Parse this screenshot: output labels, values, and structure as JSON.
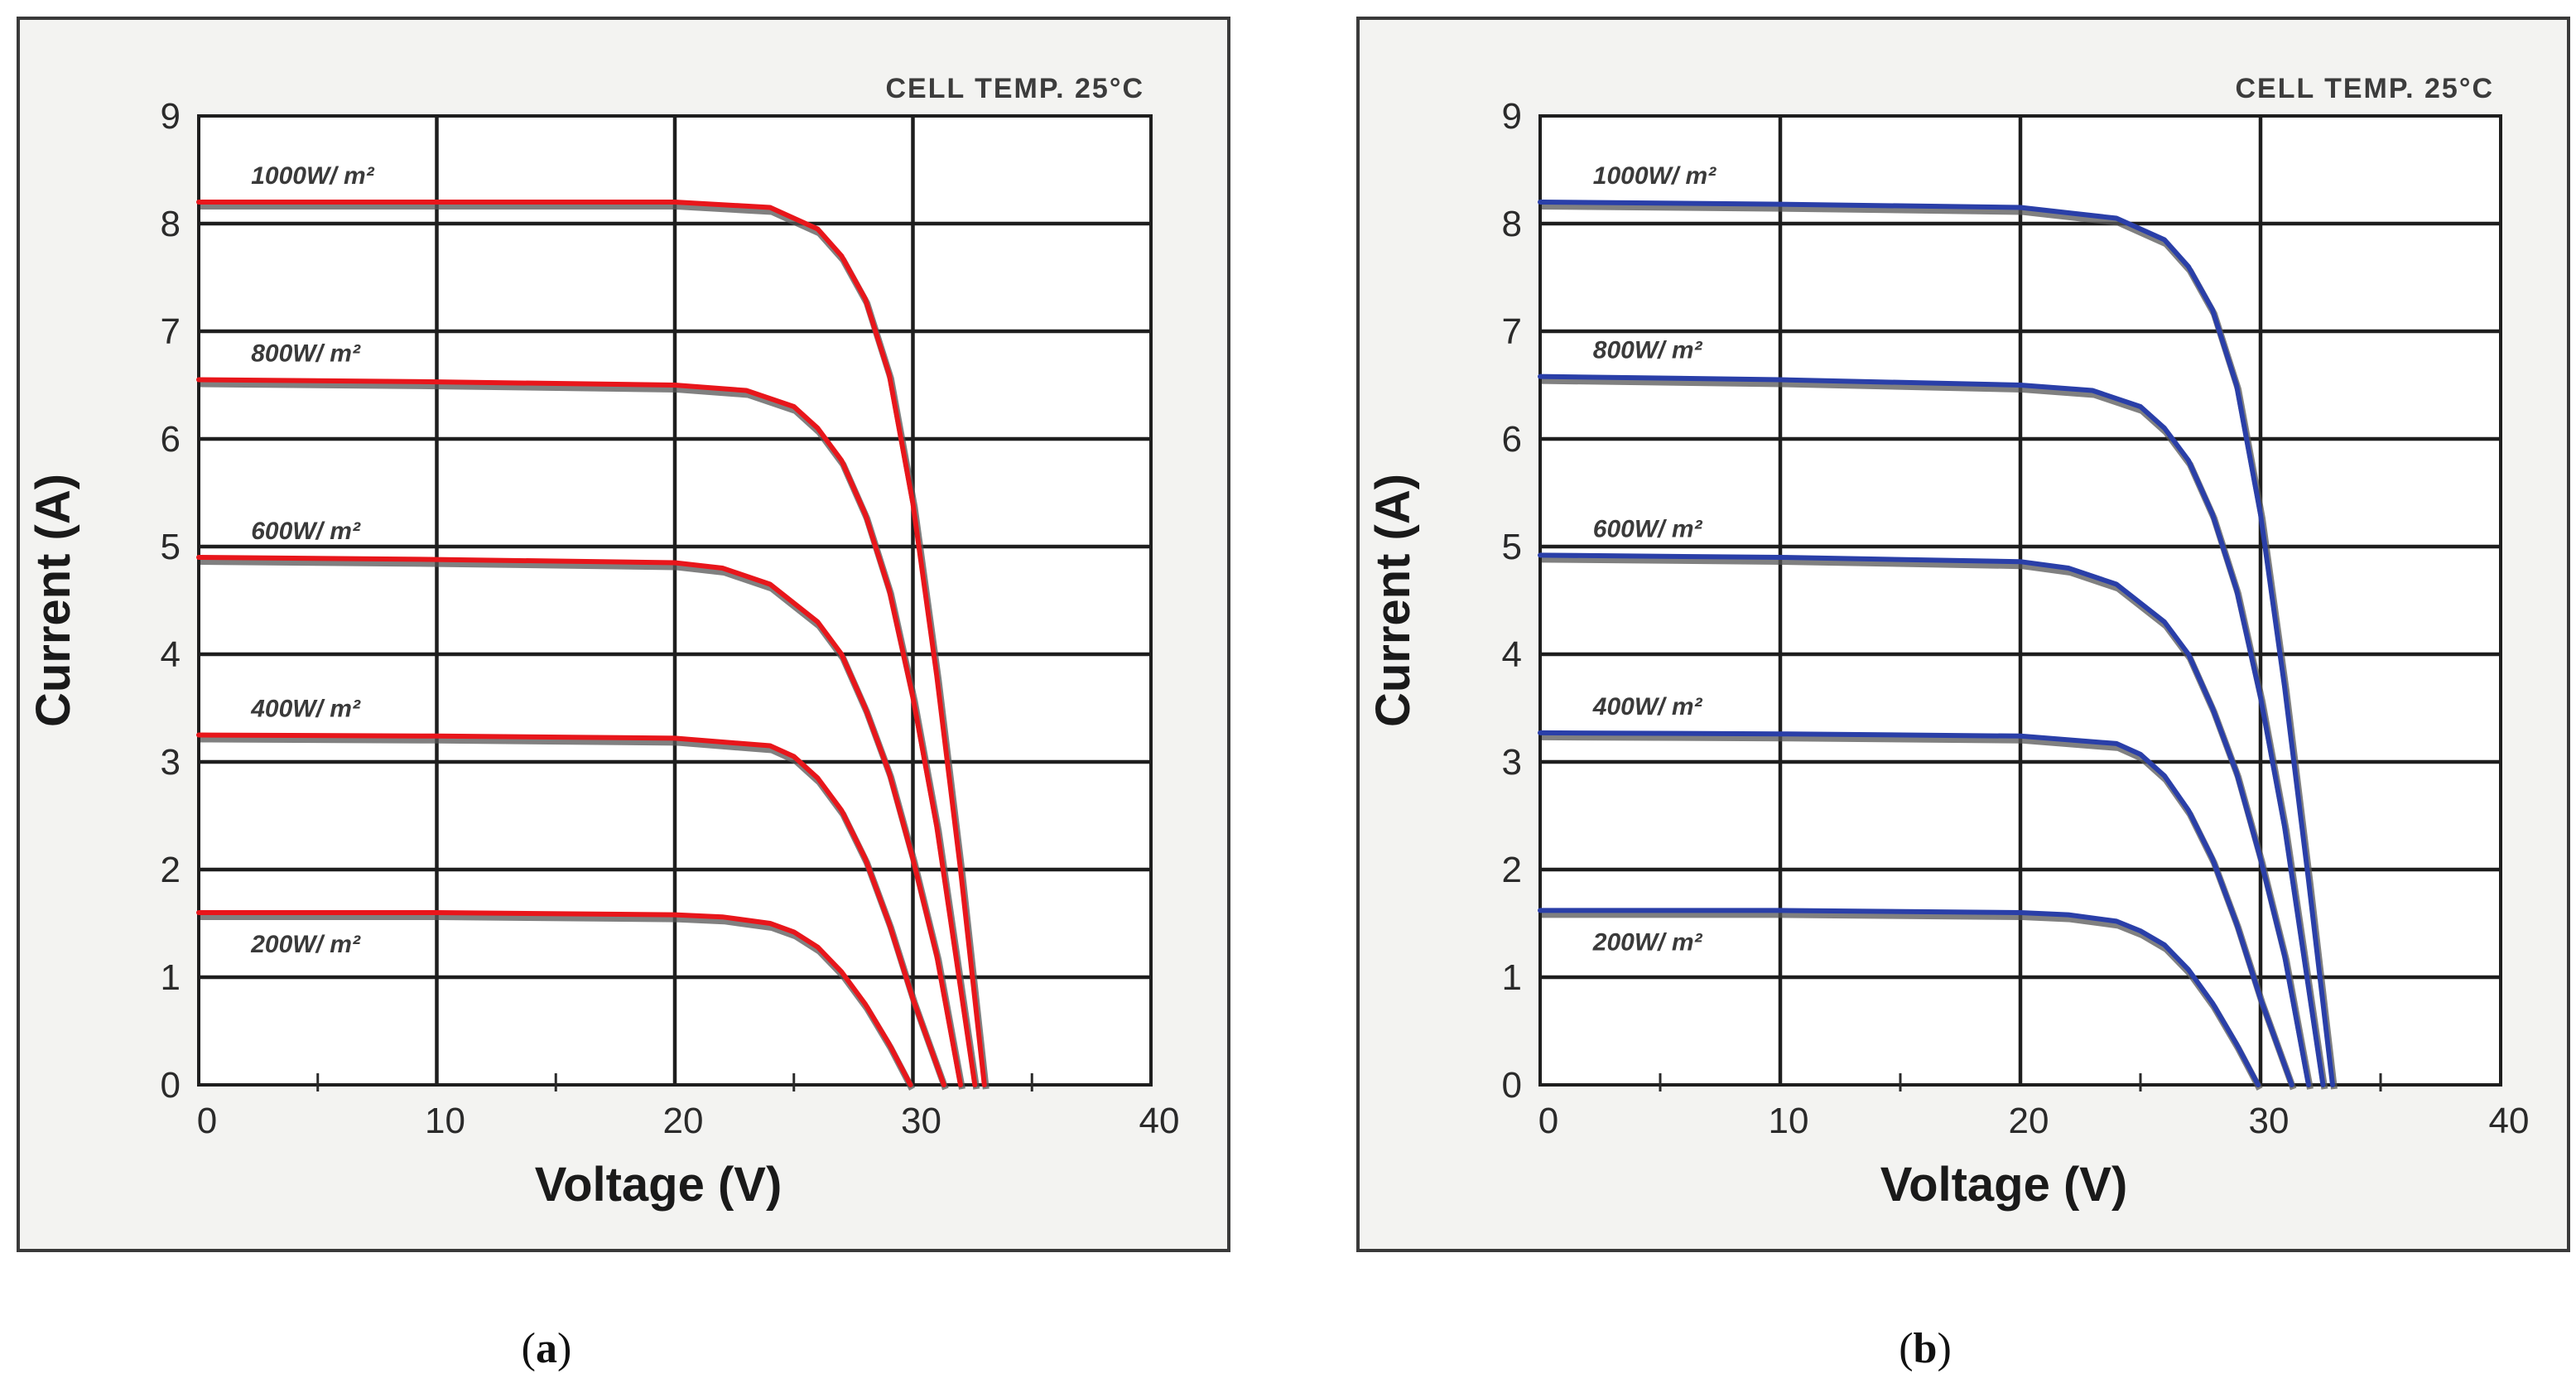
{
  "chart_data": [
    {
      "type": "line",
      "panel_caption": "a",
      "header": "CELL TEMP. 25°C",
      "xlabel": "Voltage (V)",
      "ylabel": "Current (A)",
      "xlim": [
        0,
        40
      ],
      "ylim": [
        0,
        9
      ],
      "x_ticks": [
        0,
        10,
        20,
        30,
        40
      ],
      "y_ticks": [
        0,
        1,
        2,
        3,
        4,
        5,
        6,
        7,
        8,
        9
      ],
      "grid": true,
      "model_color": "#e8161b",
      "reference_color": "#555555",
      "series": [
        {
          "name": "1000W/ m²",
          "Isc": 8.2,
          "Voc": 33.0,
          "x": [
            0,
            10,
            20,
            24,
            26,
            27,
            28,
            29,
            30,
            31,
            32,
            33
          ],
          "y": [
            8.2,
            8.2,
            8.2,
            8.15,
            7.95,
            7.7,
            7.3,
            6.6,
            5.4,
            3.8,
            2.0,
            0
          ]
        },
        {
          "name": "800W/ m²",
          "Isc": 6.55,
          "Voc": 32.6,
          "x": [
            0,
            10,
            20,
            23,
            25,
            26,
            27,
            28,
            29,
            30,
            31,
            32.6
          ],
          "y": [
            6.55,
            6.53,
            6.5,
            6.45,
            6.3,
            6.1,
            5.8,
            5.3,
            4.6,
            3.6,
            2.4,
            0
          ]
        },
        {
          "name": "600W/ m²",
          "Isc": 4.9,
          "Voc": 32.0,
          "x": [
            0,
            10,
            20,
            22,
            24,
            26,
            27,
            28,
            29,
            30,
            31,
            32.0
          ],
          "y": [
            4.9,
            4.88,
            4.85,
            4.8,
            4.65,
            4.3,
            4.0,
            3.5,
            2.9,
            2.1,
            1.2,
            0
          ]
        },
        {
          "name": "400W/ m²",
          "Isc": 3.25,
          "Voc": 31.3,
          "x": [
            0,
            10,
            20,
            24,
            25,
            26,
            27,
            28,
            29,
            30,
            31.3
          ],
          "y": [
            3.25,
            3.24,
            3.22,
            3.15,
            3.05,
            2.85,
            2.55,
            2.1,
            1.5,
            0.8,
            0
          ]
        },
        {
          "name": "200W/ m²",
          "Isc": 1.6,
          "Voc": 29.9,
          "x": [
            0,
            10,
            20,
            22,
            24,
            25,
            26,
            27,
            28,
            29,
            29.9
          ],
          "y": [
            1.6,
            1.6,
            1.58,
            1.56,
            1.5,
            1.42,
            1.28,
            1.05,
            0.75,
            0.38,
            0
          ]
        }
      ]
    },
    {
      "type": "line",
      "panel_caption": "b",
      "header": "CELL TEMP. 25°C",
      "xlabel": "Voltage (V)",
      "ylabel": "Current (A)",
      "xlim": [
        0,
        40
      ],
      "ylim": [
        0,
        9
      ],
      "x_ticks": [
        0,
        10,
        20,
        30,
        40
      ],
      "y_ticks": [
        0,
        1,
        2,
        3,
        4,
        5,
        6,
        7,
        8,
        9
      ],
      "grid": true,
      "model_color": "#2a3fa8",
      "reference_color": "#555555",
      "series": [
        {
          "name": "1000W/ m²",
          "Isc": 8.2,
          "Voc": 33.0,
          "x": [
            0,
            10,
            20,
            24,
            26,
            27,
            28,
            29,
            30,
            31,
            32,
            33
          ],
          "y": [
            8.2,
            8.18,
            8.15,
            8.05,
            7.85,
            7.6,
            7.2,
            6.5,
            5.3,
            3.7,
            1.9,
            0
          ]
        },
        {
          "name": "800W/ m²",
          "Isc": 6.58,
          "Voc": 32.6,
          "x": [
            0,
            10,
            20,
            23,
            25,
            26,
            27,
            28,
            29,
            30,
            31,
            32.6
          ],
          "y": [
            6.58,
            6.55,
            6.5,
            6.45,
            6.3,
            6.1,
            5.8,
            5.3,
            4.6,
            3.6,
            2.4,
            0
          ]
        },
        {
          "name": "600W/ m²",
          "Isc": 4.92,
          "Voc": 32.0,
          "x": [
            0,
            10,
            20,
            22,
            24,
            26,
            27,
            28,
            29,
            30,
            31,
            32.0
          ],
          "y": [
            4.92,
            4.9,
            4.86,
            4.8,
            4.65,
            4.3,
            4.0,
            3.5,
            2.9,
            2.1,
            1.2,
            0
          ]
        },
        {
          "name": "400W/ m²",
          "Isc": 3.27,
          "Voc": 31.3,
          "x": [
            0,
            10,
            20,
            24,
            25,
            26,
            27,
            28,
            29,
            30,
            31.3
          ],
          "y": [
            3.27,
            3.26,
            3.24,
            3.17,
            3.07,
            2.87,
            2.55,
            2.1,
            1.5,
            0.8,
            0
          ]
        },
        {
          "name": "200W/ m²",
          "Isc": 1.62,
          "Voc": 29.9,
          "x": [
            0,
            10,
            20,
            22,
            24,
            25,
            26,
            27,
            28,
            29,
            29.9
          ],
          "y": [
            1.62,
            1.62,
            1.6,
            1.58,
            1.52,
            1.43,
            1.3,
            1.07,
            0.76,
            0.38,
            0
          ]
        }
      ]
    }
  ]
}
